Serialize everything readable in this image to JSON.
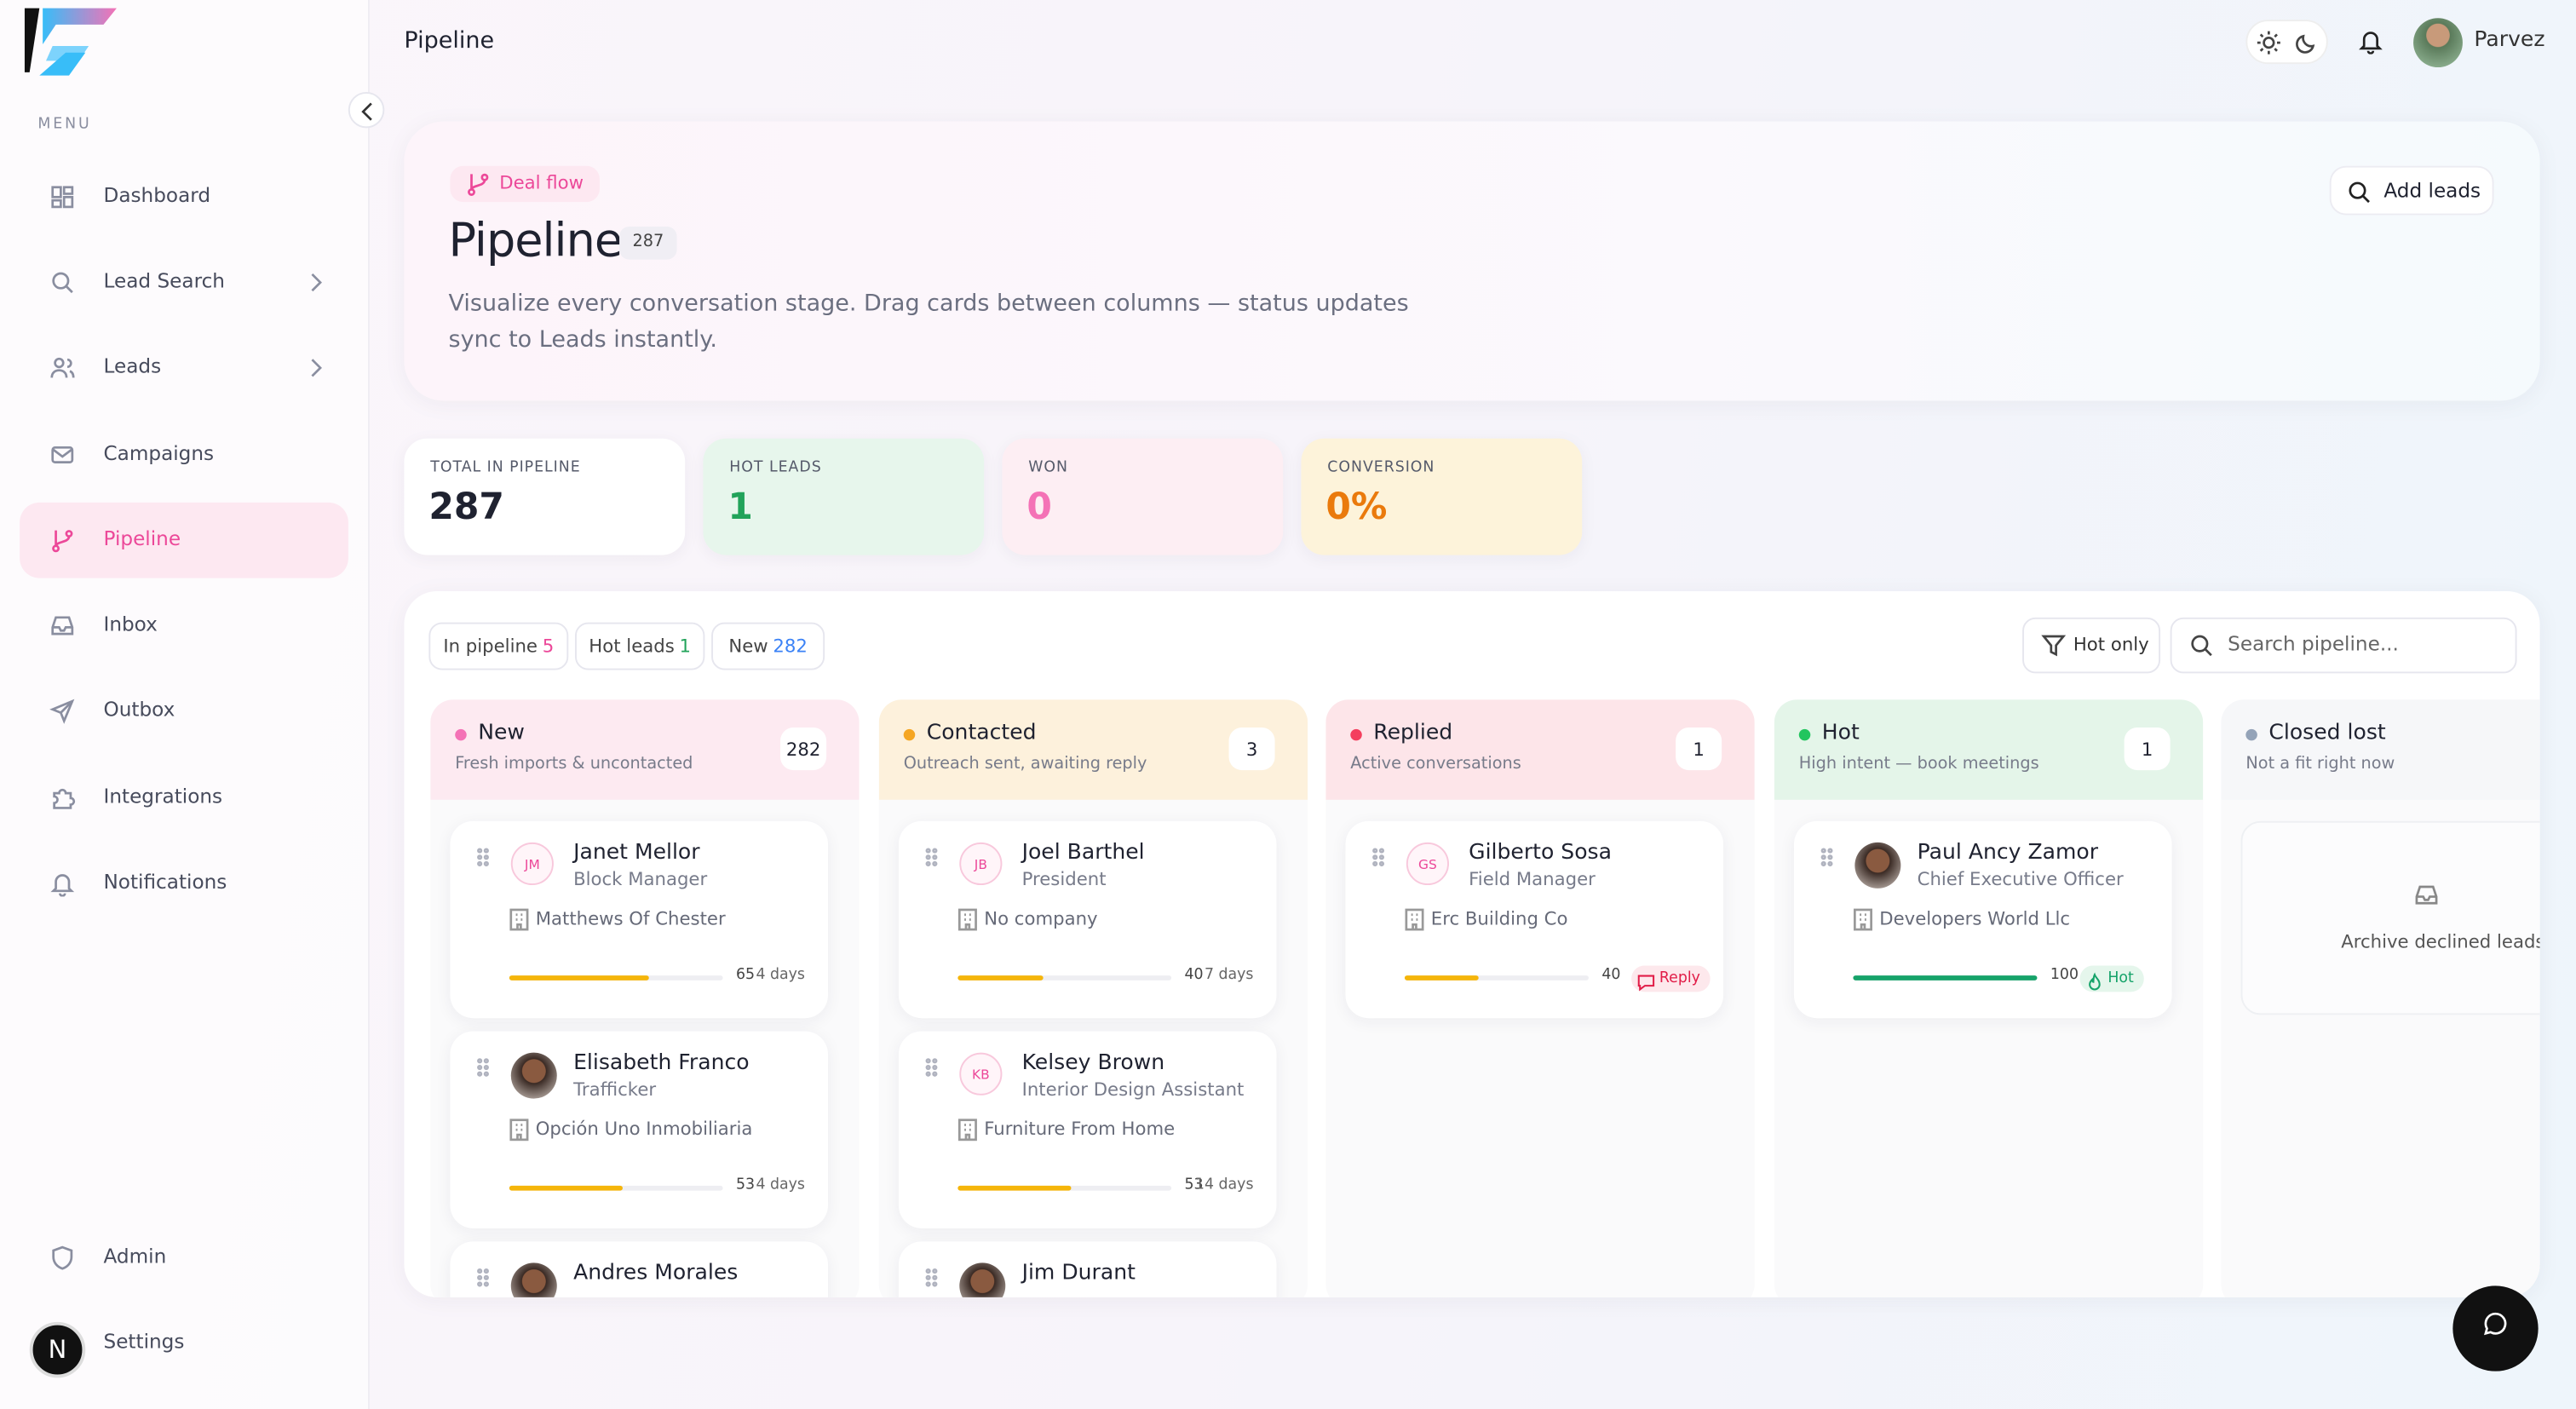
{
  "app": {
    "menu_label": "MENU",
    "nav": [
      {
        "label": "Dashboard"
      },
      {
        "label": "Lead Search"
      },
      {
        "label": "Leads"
      },
      {
        "label": "Campaigns"
      },
      {
        "label": "Pipeline"
      },
      {
        "label": "Inbox"
      },
      {
        "label": "Outbox"
      },
      {
        "label": "Integrations"
      },
      {
        "label": "Notifications"
      }
    ],
    "admin": "Admin",
    "settings": "Settings",
    "avatar_initial": "N"
  },
  "topbar": {
    "title": "Pipeline",
    "user": "Parvez"
  },
  "hero": {
    "badge": "Deal flow",
    "title": "Pipeline",
    "count": 287,
    "description": "Visualize every conversation stage. Drag cards between columns — status updates sync to Leads instantly.",
    "button": "Add leads"
  },
  "stats": [
    {
      "label": "TOTAL IN PIPELINE",
      "value": 287,
      "color": "#1f2230",
      "background": "#ffffff"
    },
    {
      "label": "HOT LEADS",
      "value": 1,
      "color": "#22a35a",
      "background": "#e7f6ec"
    },
    {
      "label": "WON",
      "value": 0,
      "color": "#f472b6",
      "background": "#fdeef3"
    },
    {
      "label": "CONVERSION",
      "value": "0%",
      "color": "#ea7a0c",
      "background": "#fdf3da"
    }
  ],
  "filters": [
    {
      "label": "In pipeline",
      "count": 5,
      "color": "#ec4899"
    },
    {
      "label": "Hot leads",
      "count": 1,
      "color": "#22a35a"
    },
    {
      "label": "New",
      "count": 282,
      "color": "#3b82f6"
    }
  ],
  "hot_only": "Hot only",
  "search_placeholder": "Search pipeline...",
  "columns": [
    {
      "title": "New",
      "subtitle": "Fresh imports & uncontacted",
      "count": 282,
      "color": "#f472b6",
      "background": "#fdeaf1",
      "bar_color": "#f5b50a",
      "cards": [
        {
          "name": "Janet Mellor",
          "role": "Block Manager",
          "company": "Matthews Of Chester",
          "initials": "JM",
          "score": 65,
          "age": "4 days"
        },
        {
          "name": "Elisabeth Franco",
          "role": "Trafficker",
          "company": "Opción Uno Inmobiliaria",
          "score": 53,
          "age": "4 days"
        },
        {
          "name": "Andres Morales"
        }
      ]
    },
    {
      "title": "Contacted",
      "subtitle": "Outreach sent, awaiting reply",
      "count": 3,
      "color": "#f5a623",
      "background": "#fdf1dc",
      "bar_color": "#f5b50a",
      "cards": [
        {
          "name": "Joel Barthel",
          "role": "President",
          "company": "No company",
          "initials": "JB",
          "score": 40,
          "age": "7 days"
        },
        {
          "name": "Kelsey Brown",
          "role": "Interior Design Assistant",
          "company": "Furniture From Home",
          "initials": "KB",
          "score": 53,
          "age": "14 days"
        },
        {
          "name": "Jim Durant"
        }
      ]
    },
    {
      "title": "Replied",
      "subtitle": "Active conversations",
      "count": 1,
      "color": "#f43f5e",
      "background": "#fde5e9",
      "bar_color": "#f5b50a",
      "cards": [
        {
          "name": "Gilberto Sosa",
          "role": "Field Manager",
          "company": "Erc Building Co",
          "initials": "GS",
          "score": 40,
          "tag": "Reply"
        }
      ]
    },
    {
      "title": "Hot",
      "subtitle": "High intent — book meetings",
      "count": 1,
      "color": "#22c55e",
      "background": "#e4f5e9",
      "bar_color": "#16a36a",
      "cards": [
        {
          "name": "Paul Ancy Zamor",
          "role": "Chief Executive Officer",
          "company": "Developers World Llc",
          "score": 100,
          "tag": "Hot"
        }
      ]
    },
    {
      "title": "Closed lost",
      "subtitle": "Not a fit right now",
      "color": "#94a3b8",
      "background": "#f6f7f9",
      "cards": [],
      "empty_text": "Archive declined leads"
    }
  ]
}
